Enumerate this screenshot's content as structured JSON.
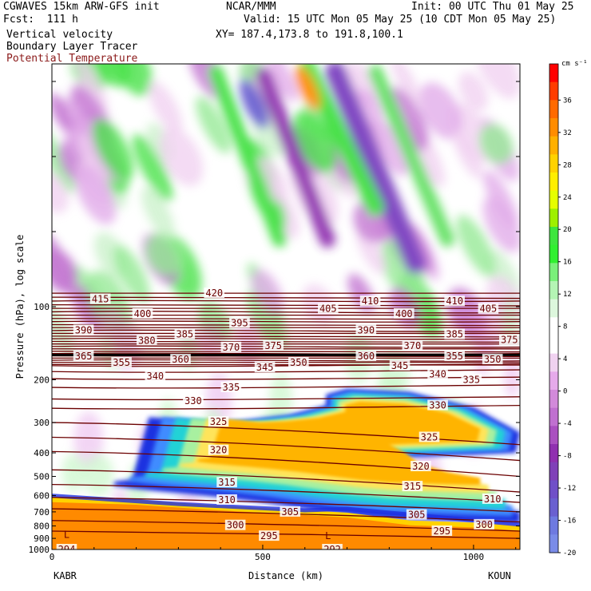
{
  "header": {
    "model": "CGWAVES 15km ARW-GFS init",
    "forecast": "Fcst:  111 h",
    "field1": "Vertical velocity",
    "field2": "Boundary Layer Tracer",
    "field3": "Potential Temperature",
    "org": "NCAR/MMM",
    "init": "Init: 00 UTC Thu 01 May 25",
    "valid": "Valid: 15 UTC Mon 05 May 25 (10 CDT Mon 05 May 25)",
    "xy": "XY= 187.4,173.8 to 191.8,100.1"
  },
  "colors": {
    "theta": "#6b0000",
    "tracer": [
      "#1f30e0",
      "#3f8cff",
      "#20d2d6",
      "#a8f0a0",
      "#ffe45a",
      "#ffb400"
    ],
    "boundary_layer": "#ff8a00"
  },
  "chart_data": {
    "type": "heatmap",
    "ylabel": "Pressure (hPa), log scale",
    "xlabel": "Distance (km)",
    "x_ticks": [
      "0",
      "500",
      "1000"
    ],
    "x_range": [
      0,
      1110
    ],
    "y_ticks": [
      "100",
      "200",
      "300",
      "400",
      "500",
      "600",
      "700",
      "800",
      "900",
      "1000"
    ],
    "y_scale": "log",
    "start_station": "KABR",
    "end_station": "KOUN",
    "colorbar": {
      "unit": "cm s⁻¹",
      "labels": [
        "36",
        "32",
        "28",
        "24",
        "20",
        "16",
        "12",
        "8",
        "4",
        "0",
        "-4",
        "-8",
        "-12",
        "-16",
        "-20"
      ],
      "colors": [
        "#ff0000",
        "#ff3c00",
        "#ff6a00",
        "#ff8c00",
        "#ffb000",
        "#ffd200",
        "#ffee00",
        "#e6ff00",
        "#9ef000",
        "#3ee63e",
        "#30f030",
        "#7af07a",
        "#b4f4b4",
        "#ddf7dd",
        "#ffffff",
        "#ffffff",
        "#f0d2f0",
        "#e6aaea",
        "#d28ada",
        "#c070d0",
        "#aa50c0",
        "#9030b0",
        "#8040b8",
        "#7050c8",
        "#6a60d0",
        "#6e7ae0",
        "#7a8ce8"
      ]
    },
    "theta_labels": [
      {
        "text": "420",
        "x": 385,
        "p": 88
      },
      {
        "text": "415",
        "x": 115,
        "p": 93
      },
      {
        "text": "410",
        "x": 755,
        "p": 95
      },
      {
        "text": "410",
        "x": 955,
        "p": 95
      },
      {
        "text": "405",
        "x": 655,
        "p": 102
      },
      {
        "text": "405",
        "x": 1035,
        "p": 102
      },
      {
        "text": "400",
        "x": 215,
        "p": 107
      },
      {
        "text": "400",
        "x": 835,
        "p": 107
      },
      {
        "text": "395",
        "x": 445,
        "p": 117
      },
      {
        "text": "390",
        "x": 75,
        "p": 125
      },
      {
        "text": "390",
        "x": 745,
        "p": 125
      },
      {
        "text": "385",
        "x": 315,
        "p": 130
      },
      {
        "text": "385",
        "x": 955,
        "p": 130
      },
      {
        "text": "380",
        "x": 225,
        "p": 138
      },
      {
        "text": "375",
        "x": 525,
        "p": 145
      },
      {
        "text": "375",
        "x": 1085,
        "p": 137
      },
      {
        "text": "370",
        "x": 425,
        "p": 147
      },
      {
        "text": "370",
        "x": 855,
        "p": 145
      },
      {
        "text": "365",
        "x": 75,
        "p": 160
      },
      {
        "text": "360",
        "x": 305,
        "p": 165
      },
      {
        "text": "360",
        "x": 745,
        "p": 160
      },
      {
        "text": "355",
        "x": 165,
        "p": 170
      },
      {
        "text": "355",
        "x": 955,
        "p": 160
      },
      {
        "text": "350",
        "x": 585,
        "p": 170
      },
      {
        "text": "350",
        "x": 1045,
        "p": 165
      },
      {
        "text": "345",
        "x": 505,
        "p": 178
      },
      {
        "text": "345",
        "x": 825,
        "p": 175
      },
      {
        "text": "340",
        "x": 245,
        "p": 193
      },
      {
        "text": "340",
        "x": 915,
        "p": 190
      },
      {
        "text": "335",
        "x": 425,
        "p": 215
      },
      {
        "text": "335",
        "x": 995,
        "p": 200
      },
      {
        "text": "330",
        "x": 335,
        "p": 244
      },
      {
        "text": "330",
        "x": 915,
        "p": 255
      },
      {
        "text": "325",
        "x": 395,
        "p": 298
      },
      {
        "text": "325",
        "x": 895,
        "p": 345
      },
      {
        "text": "320",
        "x": 395,
        "p": 390
      },
      {
        "text": "320",
        "x": 875,
        "p": 455
      },
      {
        "text": "315",
        "x": 415,
        "p": 530
      },
      {
        "text": "315",
        "x": 855,
        "p": 550
      },
      {
        "text": "310",
        "x": 415,
        "p": 625
      },
      {
        "text": "310",
        "x": 1045,
        "p": 620
      },
      {
        "text": "305",
        "x": 565,
        "p": 700
      },
      {
        "text": "305",
        "x": 865,
        "p": 720
      },
      {
        "text": "300",
        "x": 435,
        "p": 795
      },
      {
        "text": "300",
        "x": 1025,
        "p": 790
      },
      {
        "text": "295",
        "x": 515,
        "p": 880
      },
      {
        "text": "295",
        "x": 925,
        "p": 840
      },
      {
        "text": "294",
        "x": 35,
        "p": 1000
      },
      {
        "text": "292",
        "x": 665,
        "p": 1000
      }
    ],
    "low_markers": [
      {
        "text": "L",
        "x": 35,
        "p": 870
      },
      {
        "text": "L",
        "x": 655,
        "p": 880
      }
    ],
    "tracer_plume": [
      [
        190,
        515
      ],
      [
        150,
        525
      ],
      [
        145,
        545
      ],
      [
        190,
        560
      ],
      [
        250,
        575
      ],
      [
        320,
        590
      ],
      [
        400,
        610
      ],
      [
        500,
        640
      ],
      [
        600,
        680
      ],
      [
        700,
        720
      ],
      [
        800,
        750
      ],
      [
        900,
        760
      ],
      [
        1000,
        770
      ],
      [
        1110,
        780
      ],
      [
        1110,
        700
      ],
      [
        1000,
        640
      ],
      [
        900,
        560
      ],
      [
        850,
        470
      ],
      [
        800,
        420
      ],
      [
        1100,
        400
      ],
      [
        1110,
        330
      ],
      [
        1000,
        260
      ],
      [
        850,
        225
      ],
      [
        700,
        218
      ],
      [
        650,
        230
      ],
      [
        650,
        255
      ],
      [
        560,
        280
      ],
      [
        450,
        295
      ],
      [
        360,
        300
      ],
      [
        290,
        290
      ],
      [
        230,
        285
      ]
    ]
  }
}
